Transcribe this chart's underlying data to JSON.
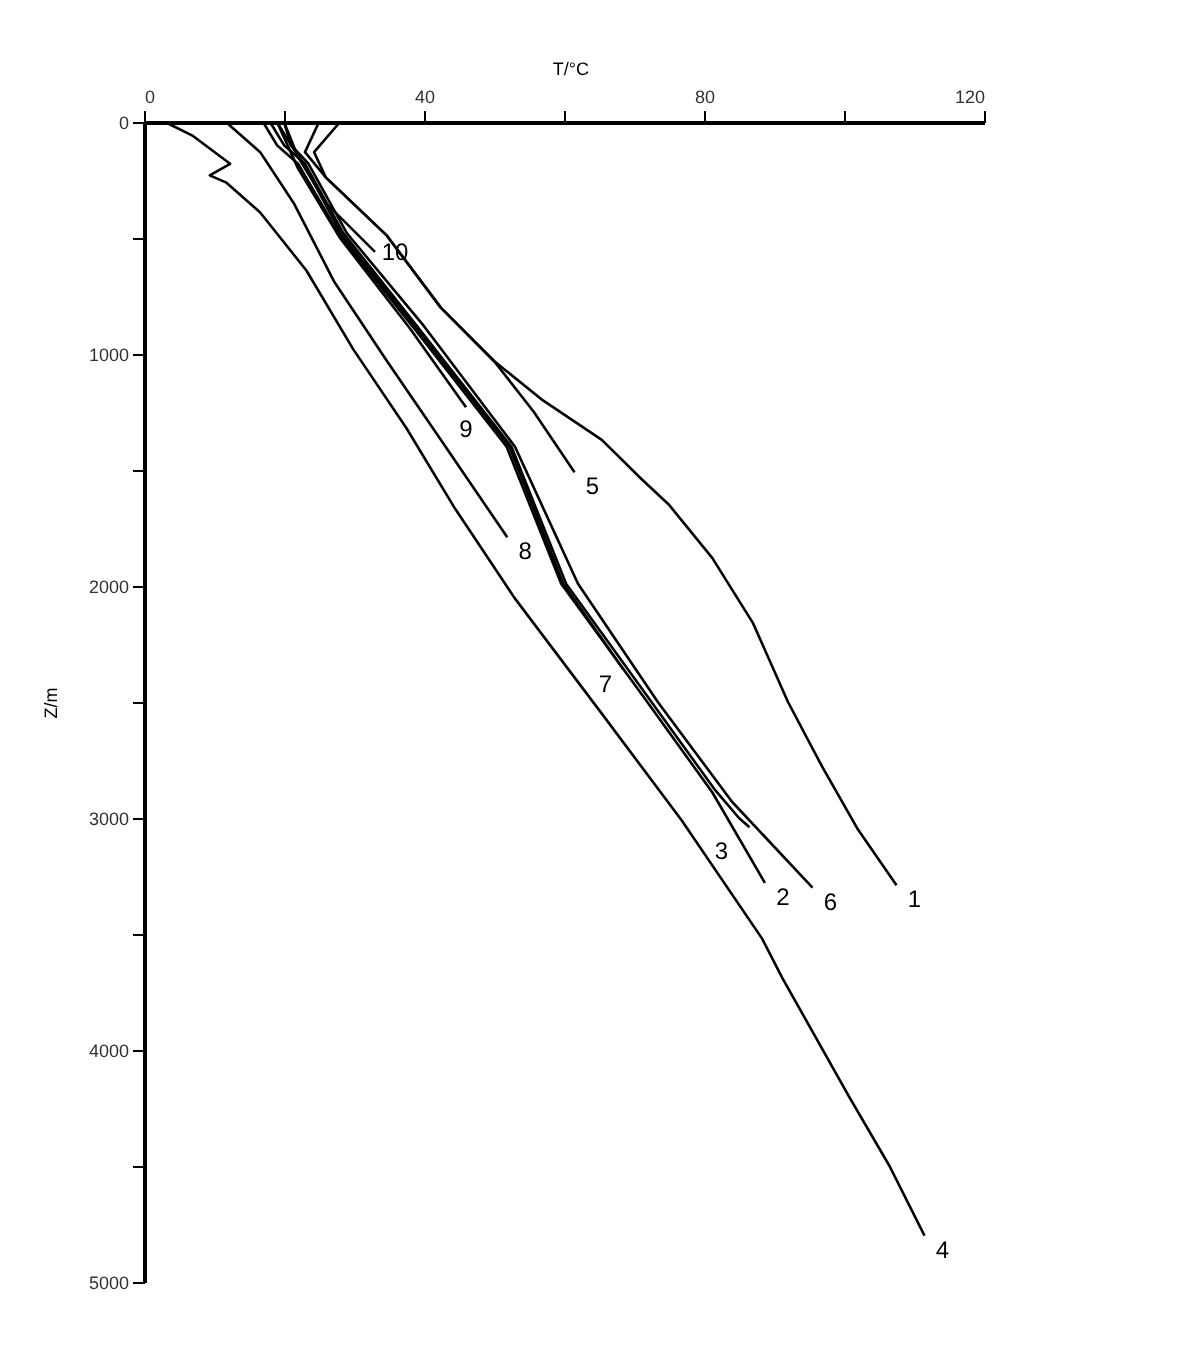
{
  "chart_data": {
    "type": "line",
    "xlabel": "T/°C",
    "ylabel": "Z/m",
    "xlim": [
      0,
      120
    ],
    "xticks": [
      0,
      {
        "value": 20,
        "label": null
      },
      40,
      {
        "value": 60,
        "label": null
      },
      80,
      {
        "value": 100,
        "label": null
      },
      120
    ],
    "ylim": [
      5000,
      0
    ],
    "yticks": [
      0,
      {
        "value": 500,
        "label": null
      },
      1000,
      {
        "value": 1500,
        "label": null
      },
      2000,
      {
        "value": 2500,
        "label": null
      },
      3000,
      {
        "value": 3500,
        "label": null
      },
      4000,
      {
        "value": 4500,
        "label": null
      },
      5000
    ],
    "grid": false,
    "marker": "none",
    "line_style": "solid",
    "series": [
      {
        "name": "1",
        "color": "#000000",
        "x": [
          28,
          24.3,
          26,
          34.7,
          42.4,
          50,
          57,
          65.4,
          71.1,
          75,
          81.2,
          87,
          92,
          96.9,
          102,
          107.5
        ],
        "values": [
          0,
          130,
          240,
          490,
          800,
          1030,
          1200,
          1370,
          1540,
          1650,
          1880,
          2160,
          2500,
          2780,
          3050,
          3290
        ]
      },
      {
        "name": "2",
        "color": "#000000",
        "x": [
          17,
          19,
          22,
          28,
          38.6,
          51.8,
          59.6,
          71.9,
          81.2,
          88.7
        ],
        "values": [
          0,
          100,
          180,
          490,
          890,
          1400,
          1990,
          2500,
          2890,
          3280
        ]
      },
      {
        "name": "3",
        "color": "#000000",
        "x": [
          18,
          20,
          23,
          28.5,
          39,
          52.5,
          60.3,
          72.5,
          81.6,
          85,
          86.5
        ],
        "values": [
          0,
          100,
          180,
          480,
          880,
          1400,
          1990,
          2500,
          2880,
          3000,
          3040
        ]
      },
      {
        "name": "4",
        "color": "#000000",
        "x": [
          3,
          7,
          12.3,
          9.4,
          11.7,
          16.6,
          23.2,
          29.9,
          37.5,
          44.3,
          52.9,
          65.4,
          76.8,
          88.3,
          91.2,
          100.7,
          106.5,
          111.5
        ],
        "values": [
          0,
          60,
          180,
          230,
          260,
          390,
          640,
          980,
          1320,
          1660,
          2050,
          2550,
          3010,
          3520,
          3690,
          4200,
          4500,
          4800
        ]
      },
      {
        "name": "5",
        "color": "#000000",
        "x": [
          25,
          23,
          26,
          34.7,
          42.4,
          50,
          55.7,
          61.5
        ],
        "values": [
          0,
          130,
          240,
          490,
          800,
          1030,
          1250,
          1510
        ]
      },
      {
        "name": "6",
        "color": "#000000",
        "x": [
          20,
          21,
          23.5,
          29,
          40,
          53,
          62,
          73.4,
          84,
          95.5
        ],
        "values": [
          0,
          100,
          180,
          480,
          880,
          1400,
          1990,
          2500,
          2930,
          3300
        ]
      },
      {
        "name": "7",
        "color": "#000000",
        "x": [
          19,
          21,
          22.8,
          28.3,
          39,
          52.2,
          59.9,
          68.5
        ],
        "values": [
          0,
          100,
          180,
          490,
          890,
          1400,
          1990,
          2360
        ]
      },
      {
        "name": "8",
        "color": "#000000",
        "x": [
          11.7,
          16.6,
          21.4,
          27.2,
          34.7,
          42.4,
          51.9
        ],
        "values": [
          0,
          130,
          350,
          690,
          1030,
          1370,
          1790
        ]
      },
      {
        "name": "9",
        "color": "#000000",
        "x": [
          19,
          22,
          28,
          38,
          46
        ],
        "values": [
          0,
          200,
          500,
          890,
          1230
        ]
      },
      {
        "name": "10",
        "color": "#000000",
        "x": [
          20,
          22,
          26,
          33
        ],
        "values": [
          0,
          150,
          350,
          560
        ]
      }
    ]
  }
}
